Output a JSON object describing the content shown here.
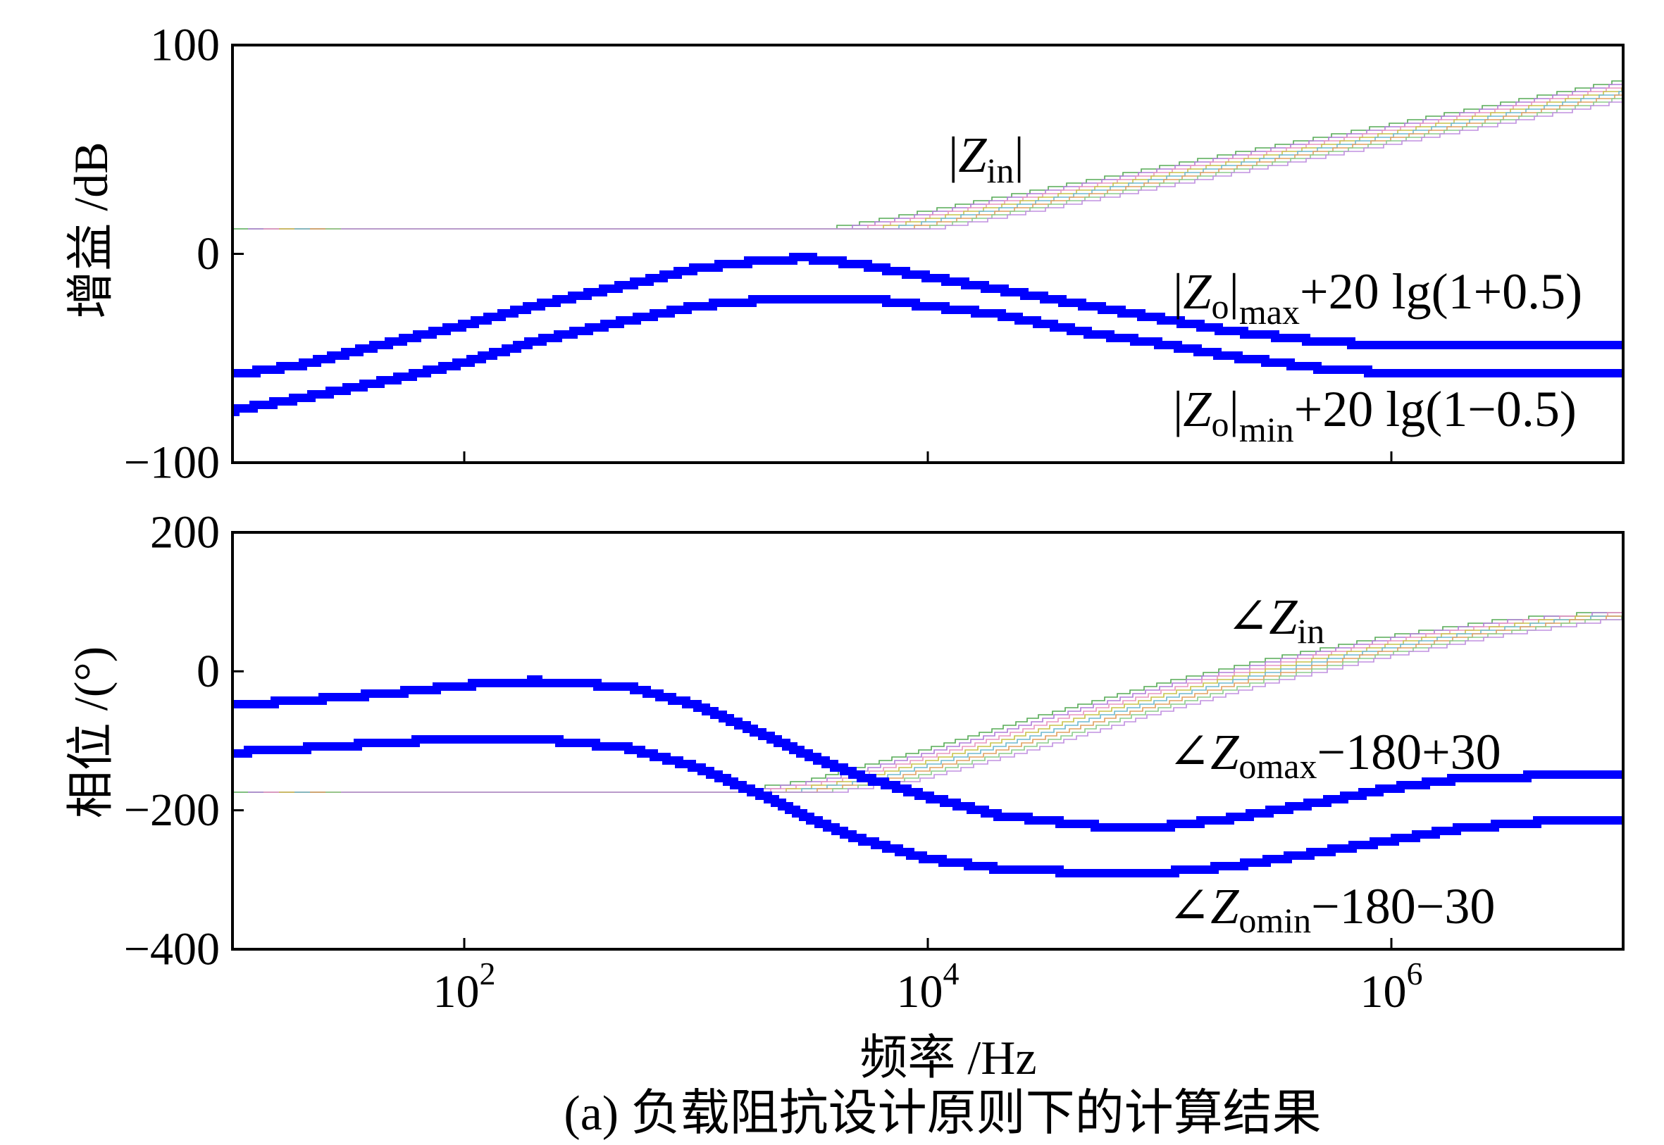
{
  "figure": {
    "caption": "(a) 负载阻抗设计原则下的计算结果"
  },
  "chart_data": [
    {
      "type": "line",
      "ylabel": "增益 /dB",
      "xscale": "log",
      "xlim": [
        10,
        10000000
      ],
      "ylim": [
        -100,
        100
      ],
      "grid": false,
      "xticks": [
        100,
        10000,
        1000000
      ],
      "yticks": [
        {
          "value": 100,
          "label": "100"
        },
        {
          "value": 0,
          "label": "0"
        },
        {
          "value": -100,
          "label": "−100"
        }
      ],
      "series": [
        {
          "label": {
            "pre": "|",
            "italic": "Z",
            "sub": "in",
            "post": "|"
          },
          "band_colors": [
            "#55aa55",
            "#b07cd8",
            "#e896c0",
            "#c9c24a",
            "#6fb8cf",
            "#e0a060",
            "#8ccc8c",
            "#c090e0"
          ],
          "x": [
            10,
            3500,
            4500,
            10000,
            100000,
            1000000,
            10000000
          ],
          "y": [
            12,
            12,
            13.5,
            20.5,
            41.5,
            62,
            83
          ]
        },
        {
          "label": {
            "pre": "|",
            "italic": "Z",
            "sub": "o",
            "mid": "|",
            "sub2": "max",
            "post": "+20 lg(1+0.5)"
          },
          "color": "#0000ff",
          "x": [
            10,
            20,
            50,
            100,
            200,
            500,
            1000,
            2000,
            3000,
            5000,
            10000,
            20000,
            50000,
            100000,
            200000,
            500000,
            1000000,
            2000000,
            5000000,
            10000000
          ],
          "y": [
            -58,
            -53,
            -42,
            -34,
            -25,
            -15,
            -7,
            -3,
            -2,
            -5,
            -11,
            -17,
            -25,
            -31,
            -37,
            -42,
            -44,
            -44,
            -44,
            -44
          ]
        },
        {
          "label": {
            "pre": "|",
            "italic": "Z",
            "sub": "o",
            "mid": "|",
            "sub2": "min",
            "post": "+20 lg(1−0.5)"
          },
          "color": "#0000ff",
          "x": [
            10,
            20,
            50,
            100,
            200,
            500,
            1000,
            2000,
            3000,
            5000,
            10000,
            20000,
            50000,
            100000,
            200000,
            500000,
            1000000,
            2000000,
            5000000,
            10000000
          ],
          "y": [
            -75,
            -69,
            -60,
            -52,
            -42,
            -32,
            -25,
            -22,
            -21,
            -21,
            -25,
            -29,
            -38,
            -43,
            -49,
            -55,
            -57,
            -58,
            -58,
            -58
          ]
        }
      ]
    },
    {
      "type": "line",
      "xlabel": "频率 /Hz",
      "ylabel": "相位 /(°)",
      "xscale": "log",
      "xlim": [
        10,
        10000000
      ],
      "ylim": [
        -400,
        200
      ],
      "grid": false,
      "xticks": [
        {
          "value": 100,
          "base": "10",
          "exp": "2"
        },
        {
          "value": 10000,
          "base": "10",
          "exp": "4"
        },
        {
          "value": 1000000,
          "base": "10",
          "exp": "6"
        }
      ],
      "yticks": [
        {
          "value": 200,
          "label": "200"
        },
        {
          "value": 0,
          "label": "0"
        },
        {
          "value": -200,
          "label": "−200"
        },
        {
          "value": -400,
          "label": "−400"
        }
      ],
      "series": [
        {
          "label": {
            "pre": "∠",
            "italic": "Z",
            "sub": "in"
          },
          "band_colors": [
            "#55aa55",
            "#b07cd8",
            "#e896c0",
            "#c9c24a",
            "#6fb8cf",
            "#e0a060",
            "#8ccc8c",
            "#c090e0"
          ],
          "x": [
            10,
            1000,
            1500,
            3000,
            10000,
            30000,
            100000,
            300000,
            1000000,
            3000000,
            10000000
          ],
          "y": [
            -175,
            -175,
            -172,
            -158,
            -112,
            -65,
            -18,
            18,
            51,
            74,
            87
          ]
        },
        {
          "label": {
            "pre": "∠",
            "italic": "Z",
            "sub": "omax",
            "post": "−180+30"
          },
          "color": "#0000ff",
          "x": [
            10,
            20,
            50,
            100,
            200,
            500,
            1000,
            2000,
            3000,
            5000,
            10000,
            20000,
            50000,
            100000,
            200000,
            500000,
            1000000,
            2000000,
            5000000,
            10000000
          ],
          "y": [
            -49,
            -42,
            -31,
            -20,
            -14,
            -22,
            -49,
            -93,
            -120,
            -150,
            -181,
            -207,
            -222,
            -224,
            -212,
            -188,
            -168,
            -154,
            -150,
            -150
          ]
        },
        {
          "label": {
            "pre": "∠",
            "italic": "Z",
            "sub": "omin",
            "post": "−180−30"
          },
          "color": "#0000ff",
          "x": [
            10,
            20,
            50,
            100,
            200,
            500,
            1000,
            2000,
            3000,
            5000,
            10000,
            20000,
            50000,
            100000,
            200000,
            500000,
            1000000,
            2000000,
            5000000,
            10000000
          ],
          "y": [
            -117,
            -111,
            -102,
            -97,
            -97,
            -110,
            -138,
            -181,
            -210,
            -241,
            -270,
            -284,
            -290,
            -290,
            -281,
            -260,
            -243,
            -226,
            -215,
            -215
          ]
        }
      ]
    }
  ]
}
